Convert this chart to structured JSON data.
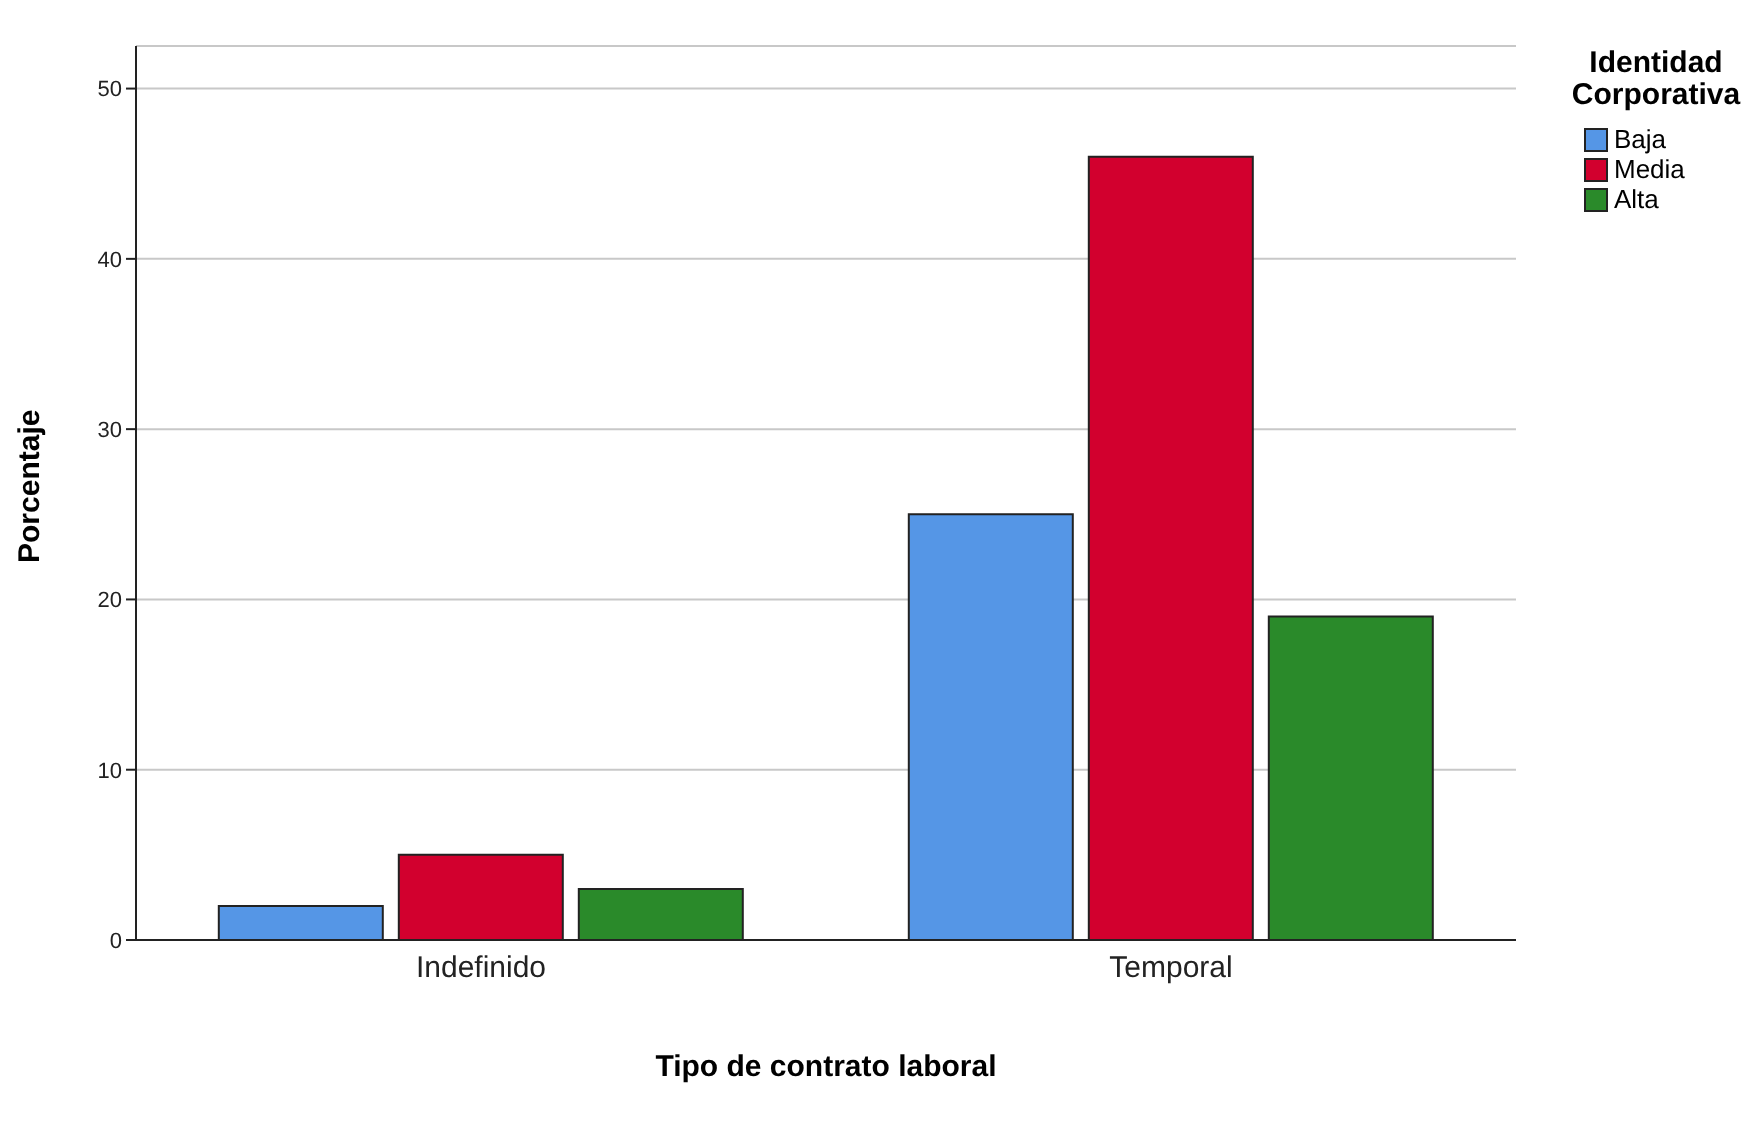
{
  "chart_data": {
    "type": "bar",
    "xlabel": "Tipo de contrato laboral",
    "ylabel": "Porcentaje",
    "legend_title": "Identidad Corporativa",
    "categories": [
      "Indefinido",
      "Temporal"
    ],
    "series": [
      {
        "name": "Baja",
        "color": "#5596e6",
        "values": [
          2,
          25
        ]
      },
      {
        "name": "Media",
        "color": "#d2002e",
        "values": [
          5,
          46
        ]
      },
      {
        "name": "Alta",
        "color": "#2a8a2a",
        "values": [
          3,
          19
        ]
      }
    ],
    "ylim": [
      0,
      52.5
    ],
    "yticks": [
      0,
      10,
      20,
      30,
      40,
      50
    ],
    "grid": "y",
    "legend": "top right"
  }
}
